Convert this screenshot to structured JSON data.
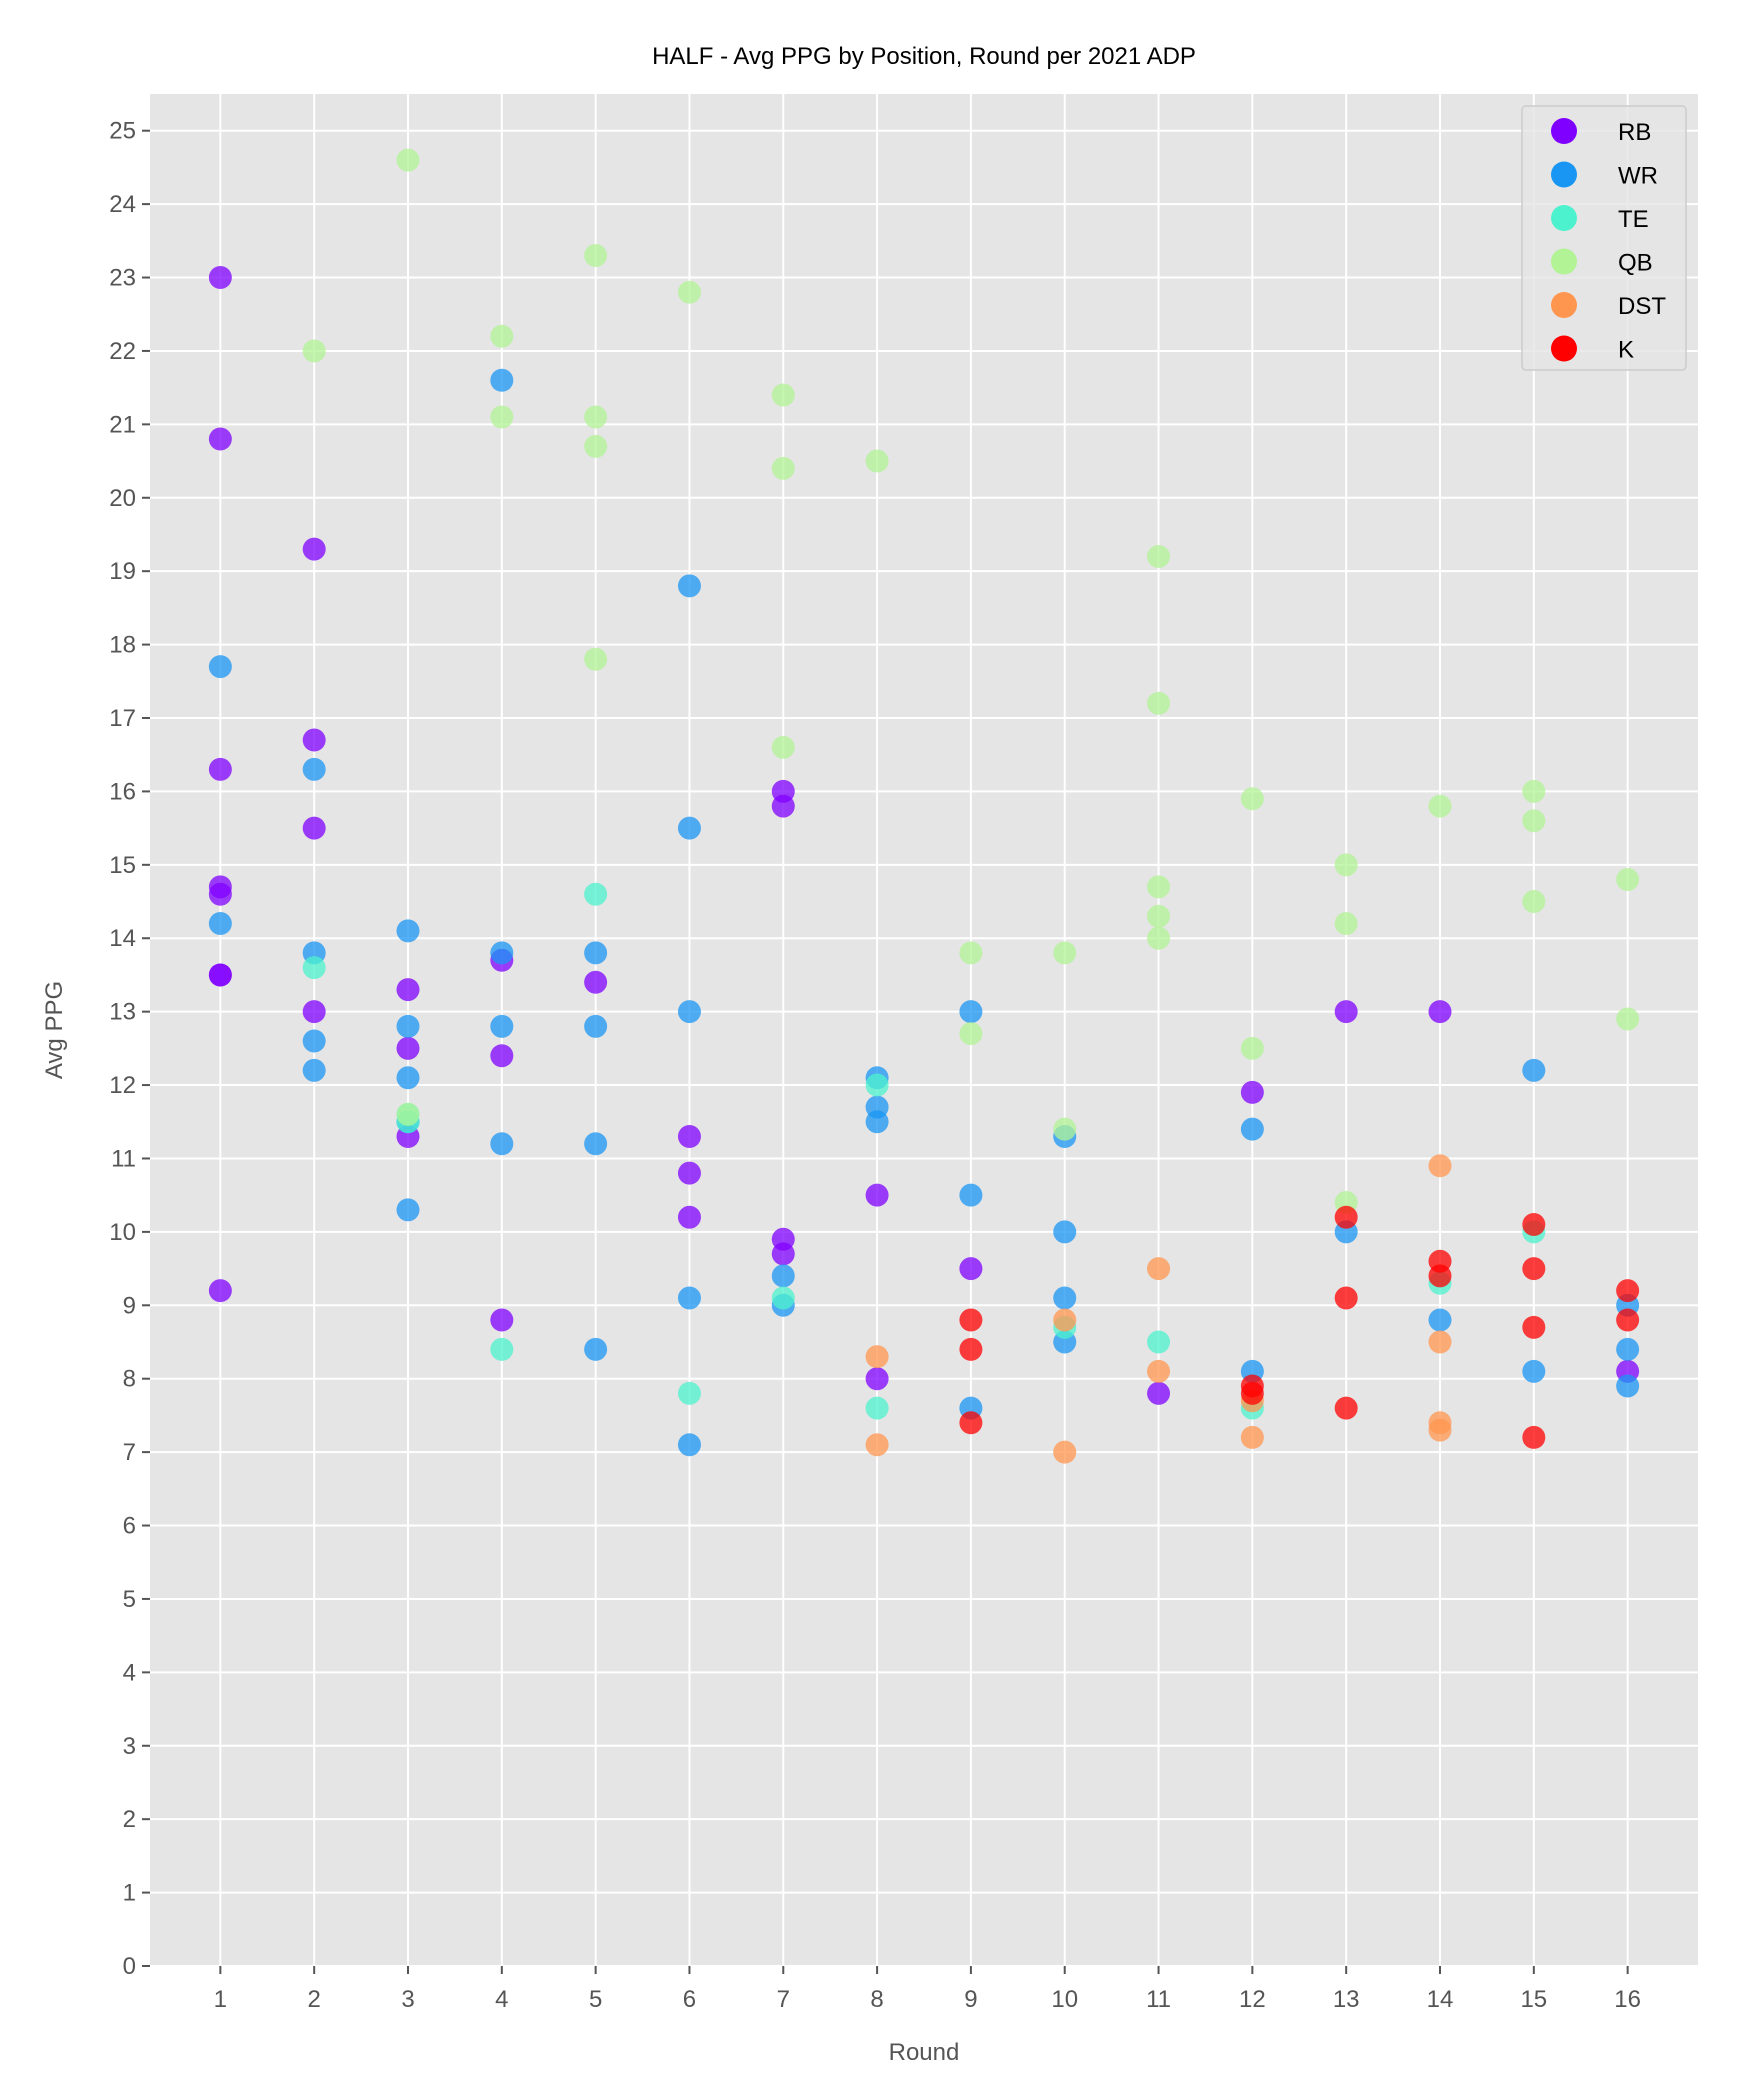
{
  "chart_data": {
    "type": "scatter",
    "title": "HALF - Avg PPG by Position, Round per 2021 ADP",
    "xlabel": "Round",
    "ylabel": "Avg PPG",
    "xlim": [
      0.25,
      16.75
    ],
    "ylim": [
      0,
      25.5
    ],
    "x_ticks": [
      1,
      2,
      3,
      4,
      5,
      6,
      7,
      8,
      9,
      10,
      11,
      12,
      13,
      14,
      15,
      16
    ],
    "y_ticks": [
      0,
      1,
      2,
      3,
      4,
      5,
      6,
      7,
      8,
      9,
      10,
      11,
      12,
      13,
      14,
      15,
      16,
      17,
      18,
      19,
      20,
      21,
      22,
      23,
      24,
      25
    ],
    "grid": true,
    "legend_position": "top-right",
    "series": [
      {
        "name": "RB",
        "color": "#8000ff",
        "points": [
          [
            1,
            23.0
          ],
          [
            1,
            20.8
          ],
          [
            1,
            16.3
          ],
          [
            1,
            14.7
          ],
          [
            1,
            14.6
          ],
          [
            1,
            13.5
          ],
          [
            1,
            13.5
          ],
          [
            1,
            9.2
          ],
          [
            2,
            19.3
          ],
          [
            2,
            16.7
          ],
          [
            2,
            15.5
          ],
          [
            2,
            13.0
          ],
          [
            3,
            13.3
          ],
          [
            3,
            12.5
          ],
          [
            3,
            11.3
          ],
          [
            4,
            13.7
          ],
          [
            4,
            12.4
          ],
          [
            4,
            8.8
          ],
          [
            5,
            13.4
          ],
          [
            6,
            11.3
          ],
          [
            6,
            10.8
          ],
          [
            6,
            10.2
          ],
          [
            7,
            16.0
          ],
          [
            7,
            15.8
          ],
          [
            7,
            9.9
          ],
          [
            7,
            9.7
          ],
          [
            8,
            10.5
          ],
          [
            8,
            8.0
          ],
          [
            9,
            9.5
          ],
          [
            11,
            7.8
          ],
          [
            12,
            11.9
          ],
          [
            13,
            13.0
          ],
          [
            14,
            13.0
          ],
          [
            16,
            8.1
          ]
        ]
      },
      {
        "name": "WR",
        "color": "#1996f3",
        "points": [
          [
            1,
            17.7
          ],
          [
            1,
            14.2
          ],
          [
            2,
            16.3
          ],
          [
            2,
            13.8
          ],
          [
            2,
            12.6
          ],
          [
            2,
            12.2
          ],
          [
            3,
            14.1
          ],
          [
            3,
            12.8
          ],
          [
            3,
            12.1
          ],
          [
            3,
            11.5
          ],
          [
            3,
            10.3
          ],
          [
            4,
            21.6
          ],
          [
            4,
            13.8
          ],
          [
            4,
            12.8
          ],
          [
            4,
            11.2
          ],
          [
            5,
            13.8
          ],
          [
            5,
            12.8
          ],
          [
            5,
            11.2
          ],
          [
            5,
            8.4
          ],
          [
            6,
            18.8
          ],
          [
            6,
            15.5
          ],
          [
            6,
            13.0
          ],
          [
            6,
            9.1
          ],
          [
            6,
            7.1
          ],
          [
            7,
            9.4
          ],
          [
            7,
            9.0
          ],
          [
            8,
            12.1
          ],
          [
            8,
            11.7
          ],
          [
            8,
            11.5
          ],
          [
            9,
            13.0
          ],
          [
            9,
            10.5
          ],
          [
            9,
            7.6
          ],
          [
            10,
            11.3
          ],
          [
            10,
            10.0
          ],
          [
            10,
            9.1
          ],
          [
            10,
            8.5
          ],
          [
            12,
            11.4
          ],
          [
            12,
            8.1
          ],
          [
            13,
            10.0
          ],
          [
            14,
            8.8
          ],
          [
            15,
            12.2
          ],
          [
            15,
            8.1
          ],
          [
            16,
            9.0
          ],
          [
            16,
            8.4
          ],
          [
            16,
            7.9
          ]
        ]
      },
      {
        "name": "TE",
        "color": "#4cf2ce",
        "points": [
          [
            2,
            13.6
          ],
          [
            3,
            11.6
          ],
          [
            3,
            11.5
          ],
          [
            4,
            8.4
          ],
          [
            5,
            14.6
          ],
          [
            6,
            7.8
          ],
          [
            7,
            9.1
          ],
          [
            8,
            12.0
          ],
          [
            8,
            7.6
          ],
          [
            10,
            8.7
          ],
          [
            11,
            8.5
          ],
          [
            12,
            7.6
          ],
          [
            14,
            9.3
          ],
          [
            15,
            10.0
          ]
        ]
      },
      {
        "name": "QB",
        "color": "#b2f396",
        "points": [
          [
            2,
            22.0
          ],
          [
            3,
            24.6
          ],
          [
            3,
            11.6
          ],
          [
            4,
            22.2
          ],
          [
            4,
            21.1
          ],
          [
            5,
            23.3
          ],
          [
            5,
            21.1
          ],
          [
            5,
            20.7
          ],
          [
            5,
            17.8
          ],
          [
            6,
            22.8
          ],
          [
            7,
            21.4
          ],
          [
            7,
            20.4
          ],
          [
            7,
            16.6
          ],
          [
            8,
            20.5
          ],
          [
            9,
            13.8
          ],
          [
            9,
            12.7
          ],
          [
            10,
            13.8
          ],
          [
            10,
            11.4
          ],
          [
            11,
            19.2
          ],
          [
            11,
            17.2
          ],
          [
            11,
            14.7
          ],
          [
            11,
            14.3
          ],
          [
            11,
            14.0
          ],
          [
            12,
            15.9
          ],
          [
            12,
            12.5
          ],
          [
            13,
            15.0
          ],
          [
            13,
            14.2
          ],
          [
            13,
            10.4
          ],
          [
            14,
            15.8
          ],
          [
            15,
            16.0
          ],
          [
            15,
            15.6
          ],
          [
            15,
            14.5
          ],
          [
            16,
            14.8
          ],
          [
            16,
            12.9
          ]
        ]
      },
      {
        "name": "DST",
        "color": "#ff964f",
        "points": [
          [
            8,
            8.3
          ],
          [
            8,
            7.1
          ],
          [
            10,
            8.8
          ],
          [
            10,
            7.0
          ],
          [
            11,
            9.5
          ],
          [
            11,
            8.1
          ],
          [
            12,
            7.7
          ],
          [
            12,
            7.2
          ],
          [
            14,
            10.9
          ],
          [
            14,
            8.5
          ],
          [
            14,
            7.4
          ],
          [
            14,
            7.3
          ]
        ]
      },
      {
        "name": "K",
        "color": "#ff0000",
        "points": [
          [
            9,
            8.8
          ],
          [
            9,
            8.4
          ],
          [
            9,
            7.4
          ],
          [
            12,
            7.9
          ],
          [
            12,
            7.8
          ],
          [
            13,
            10.2
          ],
          [
            13,
            9.1
          ],
          [
            13,
            7.6
          ],
          [
            14,
            9.6
          ],
          [
            14,
            9.4
          ],
          [
            15,
            10.1
          ],
          [
            15,
            9.5
          ],
          [
            15,
            8.7
          ],
          [
            15,
            7.2
          ],
          [
            16,
            9.2
          ],
          [
            16,
            8.8
          ]
        ]
      }
    ]
  }
}
